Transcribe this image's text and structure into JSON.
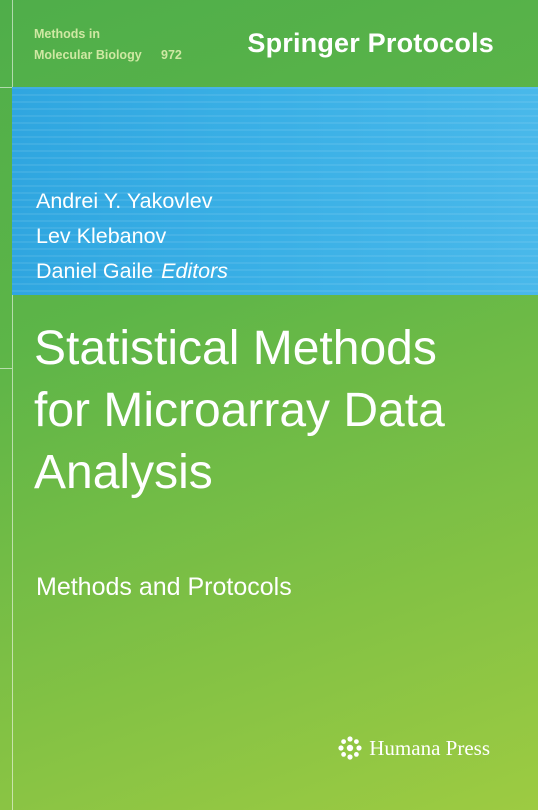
{
  "series": {
    "line1": "Methods in",
    "line2": "Molecular Biology",
    "number": "972"
  },
  "brand": "Springer Protocols",
  "editors": {
    "names": [
      "Andrei Y. Yakovlev",
      "Lev Klebanov",
      "Daniel Gaile"
    ],
    "role": "Editors"
  },
  "title": {
    "lines": [
      "Statistical Methods",
      "for Microarray Data",
      "Analysis"
    ]
  },
  "subtitle": "Methods and Protocols",
  "publisher": {
    "name": "Humana Press",
    "logo_icon": "humana-flower-icon"
  },
  "colors": {
    "background_green": "#5db548",
    "band_blue": "#3ab0e6",
    "text": "#ffffff"
  }
}
